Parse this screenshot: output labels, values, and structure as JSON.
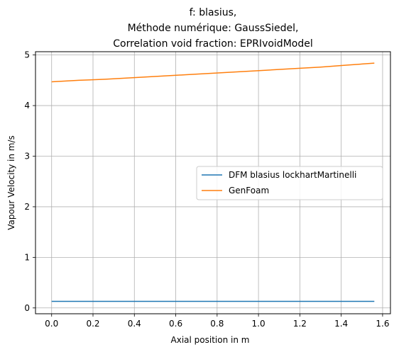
{
  "chart_data": {
    "type": "line",
    "title_lines": [
      "f: blasius,",
      "Méthode numérique: GaussSiedel,",
      "Correlation void fraction: EPRIvoidModel"
    ],
    "xlabel": "Axial position in m",
    "ylabel": "Vapour Velocity in m/s",
    "xlim": [
      -0.078,
      1.638
    ],
    "ylim": [
      -0.115,
      5.065
    ],
    "xticks": [
      0.0,
      0.2,
      0.4,
      0.6,
      0.8,
      1.0,
      1.2,
      1.4,
      1.6
    ],
    "xtick_labels": [
      "0.0",
      "0.2",
      "0.4",
      "0.6",
      "0.8",
      "1.0",
      "1.2",
      "1.4",
      "1.6"
    ],
    "yticks": [
      0,
      1,
      2,
      3,
      4,
      5
    ],
    "ytick_labels": [
      "0",
      "1",
      "2",
      "3",
      "4",
      "5"
    ],
    "grid": true,
    "legend_position": "center-right",
    "series": [
      {
        "name": "DFM blasius lockhartMartinelli",
        "color": "#1f77b4",
        "x": [
          0.0,
          0.26,
          0.52,
          0.78,
          1.04,
          1.3,
          1.56
        ],
        "y": [
          0.13,
          0.13,
          0.13,
          0.13,
          0.13,
          0.13,
          0.13
        ]
      },
      {
        "name": "GenFoam",
        "color": "#ff7f0e",
        "x": [
          0.0,
          0.13,
          0.26,
          0.39,
          0.52,
          0.65,
          0.78,
          0.91,
          1.04,
          1.17,
          1.3,
          1.43,
          1.56
        ],
        "y": [
          4.47,
          4.5,
          4.52,
          4.55,
          4.58,
          4.61,
          4.64,
          4.67,
          4.7,
          4.73,
          4.76,
          4.8,
          4.84
        ]
      }
    ]
  }
}
